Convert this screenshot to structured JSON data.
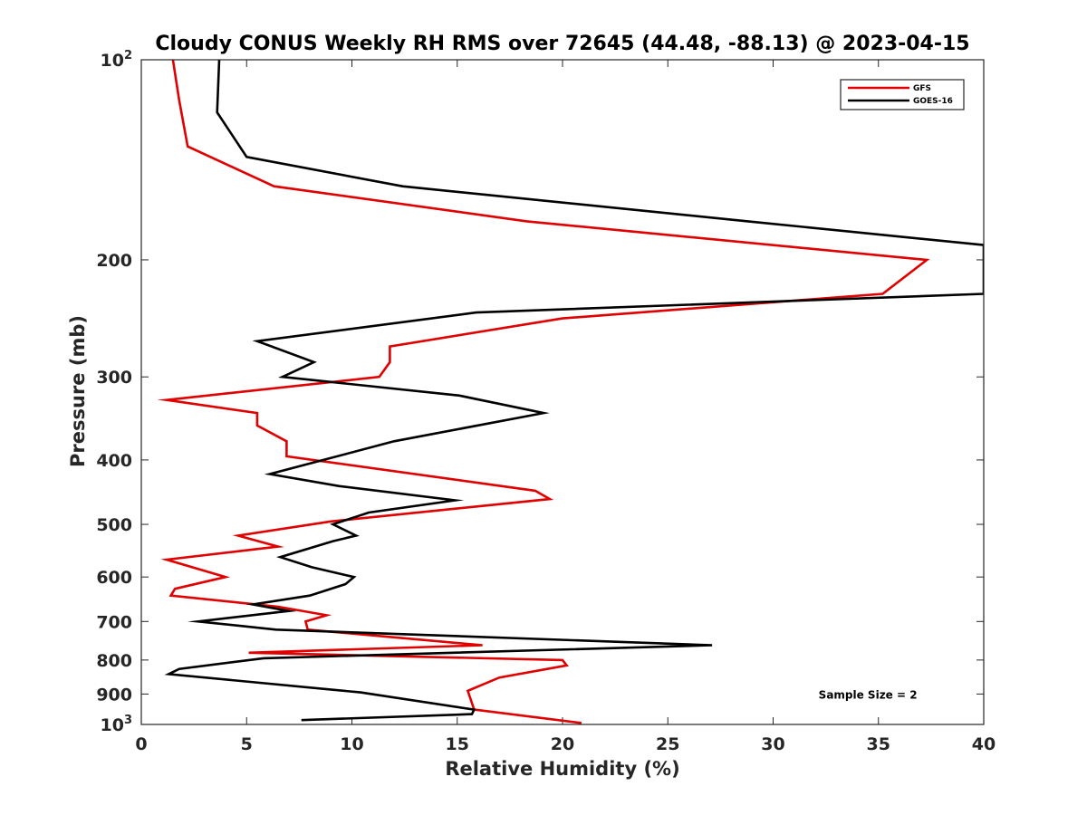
{
  "chart_data": {
    "type": "line",
    "title": "Cloudy CONUS Weekly RH RMS over 72645 (44.48, -88.13) @ 2023-04-15",
    "xlabel": "Relative Humidity (%)",
    "ylabel": "Pressure (mb)",
    "xlim": [
      0,
      40
    ],
    "ylim": [
      100,
      1000
    ],
    "yscale": "log",
    "y_reversed": true,
    "grid": false,
    "legend_position": "top-right",
    "x_ticks": [
      0,
      5,
      10,
      15,
      20,
      25,
      30,
      35,
      40
    ],
    "x_tick_labels": [
      "0",
      "5",
      "10",
      "15",
      "20",
      "25",
      "30",
      "35",
      "40"
    ],
    "y_ticks": [
      200,
      300,
      400,
      500,
      600,
      700,
      800,
      900
    ],
    "y_tick_labels": [
      "200",
      "300",
      "400",
      "500",
      "600",
      "700",
      "800",
      "900"
    ],
    "y_decade_ticks": [
      {
        "value": 100,
        "base": "10",
        "exp": "2"
      },
      {
        "value": 1000,
        "base": "10",
        "exp": "3"
      }
    ],
    "series": [
      {
        "name": "GFS",
        "color": "#e00000",
        "points": [
          [
            1.5,
            100
          ],
          [
            1.8,
            115
          ],
          [
            2.2,
            135
          ],
          [
            6.3,
            155
          ],
          [
            18.3,
            175
          ],
          [
            37.3,
            200
          ],
          [
            35.2,
            225
          ],
          [
            20.0,
            245
          ],
          [
            11.8,
            270
          ],
          [
            11.8,
            285
          ],
          [
            11.3,
            300
          ],
          [
            1.2,
            325
          ],
          [
            5.5,
            340
          ],
          [
            5.5,
            355
          ],
          [
            6.9,
            375
          ],
          [
            6.9,
            395
          ],
          [
            18.7,
            445
          ],
          [
            19.4,
            458
          ],
          [
            9.0,
            495
          ],
          [
            4.6,
            520
          ],
          [
            6.5,
            540
          ],
          [
            1.2,
            565
          ],
          [
            4.0,
            600
          ],
          [
            1.6,
            625
          ],
          [
            1.4,
            640
          ],
          [
            6.5,
            665
          ],
          [
            8.8,
            685
          ],
          [
            7.8,
            700
          ],
          [
            7.9,
            720
          ],
          [
            16.2,
            760
          ],
          [
            5.1,
            780
          ],
          [
            20.0,
            800
          ],
          [
            20.2,
            815
          ],
          [
            17.0,
            850
          ],
          [
            15.5,
            890
          ],
          [
            15.8,
            950
          ],
          [
            20.9,
            995
          ]
        ]
      },
      {
        "name": "GOES-16",
        "color": "#000000",
        "points": [
          [
            3.7,
            100
          ],
          [
            3.6,
            120
          ],
          [
            5.0,
            140
          ],
          [
            12.4,
            155
          ],
          [
            28.8,
            175
          ],
          [
            40.0,
            190
          ],
          [
            40.0,
            225
          ],
          [
            15.9,
            240
          ],
          [
            5.5,
            265
          ],
          [
            8.2,
            285
          ],
          [
            6.7,
            300
          ],
          [
            15.1,
            320
          ],
          [
            19.1,
            340
          ],
          [
            12.0,
            375
          ],
          [
            6.1,
            420
          ],
          [
            9.4,
            438
          ],
          [
            14.9,
            460
          ],
          [
            10.8,
            480
          ],
          [
            9.1,
            500
          ],
          [
            10.2,
            520
          ],
          [
            9.1,
            530
          ],
          [
            6.6,
            560
          ],
          [
            8.1,
            580
          ],
          [
            10.1,
            600
          ],
          [
            9.7,
            615
          ],
          [
            8.0,
            640
          ],
          [
            5.3,
            660
          ],
          [
            7.0,
            675
          ],
          [
            2.7,
            700
          ],
          [
            6.4,
            720
          ],
          [
            27.1,
            760
          ],
          [
            5.8,
            795
          ],
          [
            1.8,
            825
          ],
          [
            1.3,
            840
          ],
          [
            10.4,
            895
          ],
          [
            15.8,
            950
          ],
          [
            15.7,
            965
          ],
          [
            7.6,
            985
          ]
        ]
      }
    ],
    "annotations": [
      {
        "text": "Sample Size = 2",
        "x": 34.5,
        "y": 900
      }
    ]
  }
}
